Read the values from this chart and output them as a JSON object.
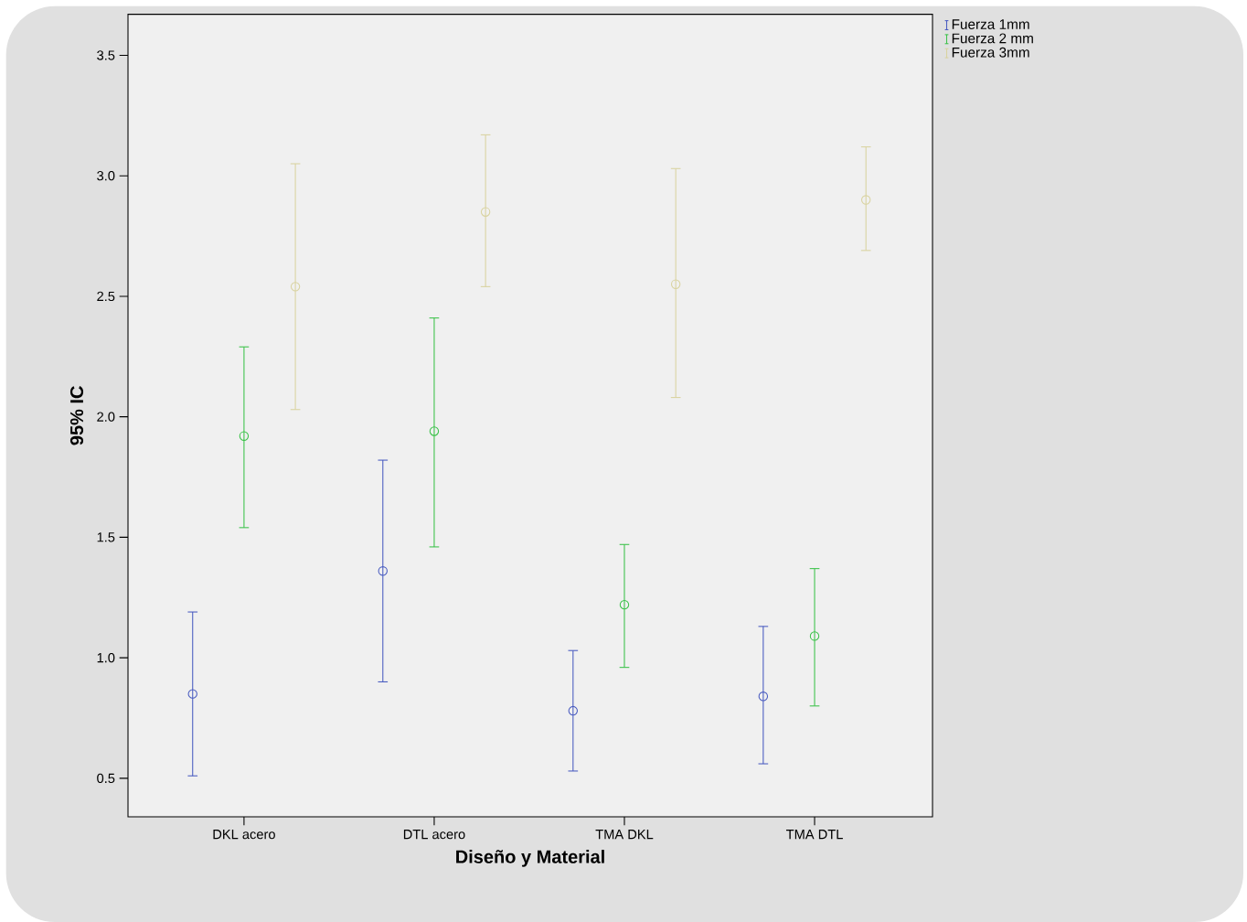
{
  "chart_data": {
    "type": "scatter",
    "xlabel": "Diseño y Material",
    "ylabel": "95% IC",
    "categories": [
      "DKL acero",
      "DTL acero",
      "TMA DKL",
      "TMA DTL"
    ],
    "series": [
      {
        "name": "Fuerza 1mm",
        "color": "#4a5cc0",
        "values": [
          0.85,
          1.36,
          0.78,
          0.84
        ],
        "errors": [
          [
            0.51,
            1.19
          ],
          [
            0.9,
            1.82
          ],
          [
            0.53,
            1.03
          ],
          [
            0.56,
            1.13
          ]
        ]
      },
      {
        "name": "Fuerza 2 mm",
        "color": "#3cc24a",
        "values": [
          1.92,
          1.94,
          1.22,
          1.09
        ],
        "errors": [
          [
            1.54,
            2.29
          ],
          [
            1.46,
            2.41
          ],
          [
            0.96,
            1.47
          ],
          [
            0.8,
            1.37
          ]
        ]
      },
      {
        "name": "Fuerza 3mm",
        "color": "#d9d3a0",
        "values": [
          2.54,
          2.85,
          2.55,
          2.9
        ],
        "errors": [
          [
            2.03,
            3.05
          ],
          [
            2.54,
            3.17
          ],
          [
            2.08,
            3.03
          ],
          [
            2.69,
            3.12
          ]
        ]
      }
    ],
    "ylim": [
      0.34,
      3.67
    ],
    "yticks": [
      {
        "value": 0.5,
        "label": "0.5"
      },
      {
        "value": 1,
        "label": "1.0"
      },
      {
        "value": 1.5,
        "label": "1.5"
      },
      {
        "value": 2,
        "label": "2.0"
      },
      {
        "value": 2.5,
        "label": "2.5"
      },
      {
        "value": 3,
        "label": "3.0"
      },
      {
        "value": 3.5,
        "label": "3.5"
      }
    ],
    "marker": "circle",
    "legend": "top right",
    "grid": false
  }
}
